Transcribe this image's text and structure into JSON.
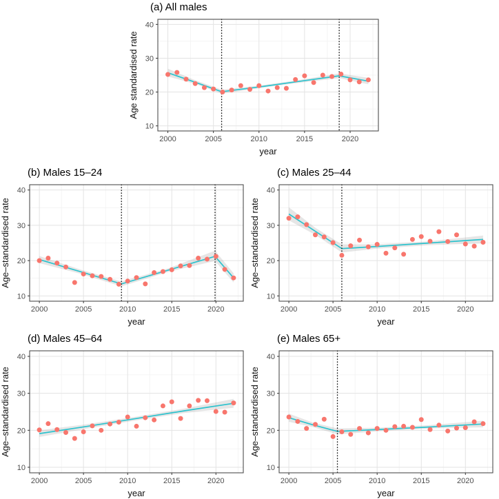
{
  "figure": {
    "description": "Five-panel faceted figure of age-standardised rates for males by age group, 2000-2022, with scatter points, piecewise linear trend with confidence band, and dotted breakpoint lines"
  },
  "colors": {
    "point": "#f8766d",
    "trend_line": "#2cc2cd",
    "ci_band": "#9a9a9a",
    "grid_major": "#e3e3e3",
    "grid_minor": "#f2f2f2",
    "panel_border": "#4d4d4d",
    "vline": "#1a1a1a",
    "tick_text": "#4d4d4d",
    "axis_title_text": "#111111",
    "title_text": "#000000",
    "background": "#ffffff"
  },
  "chart_data": [
    {
      "type": "scatter",
      "panel": "a",
      "title": "(a) All males",
      "xlabel": "year",
      "ylabel": "Age standardised rate",
      "x_ticks": [
        2000,
        2005,
        2010,
        2015,
        2020
      ],
      "y_ticks": [
        10,
        20,
        30,
        40
      ],
      "xlim": [
        1998.9,
        2023.1
      ],
      "ylim": [
        8.5,
        41.5
      ],
      "years": [
        2000,
        2001,
        2002,
        2003,
        2004,
        2005,
        2006,
        2007,
        2008,
        2009,
        2010,
        2011,
        2012,
        2013,
        2014,
        2015,
        2016,
        2017,
        2018,
        2019,
        2020,
        2021,
        2022
      ],
      "values": [
        25.2,
        25.8,
        23.8,
        22.5,
        21.3,
        20.9,
        20.0,
        20.6,
        21.9,
        20.8,
        21.9,
        20.3,
        21.3,
        21.1,
        23.7,
        24.8,
        22.8,
        25.0,
        24.6,
        25.3,
        23.6,
        23.0,
        23.6
      ],
      "breakpoint_vlines": [
        2005.9,
        2018.8
      ],
      "trend": [
        {
          "x": 2000,
          "y": 25.7,
          "lo": 24.6,
          "hi": 26.9
        },
        {
          "x": 2003,
          "y": 22.9,
          "lo": 22.4,
          "hi": 23.5
        },
        {
          "x": 2005.9,
          "y": 20.1,
          "lo": 19.5,
          "hi": 20.7
        },
        {
          "x": 2010,
          "y": 21.5,
          "lo": 21.1,
          "hi": 21.9
        },
        {
          "x": 2014,
          "y": 23.0,
          "lo": 22.6,
          "hi": 23.4
        },
        {
          "x": 2018.8,
          "y": 24.8,
          "lo": 24.1,
          "hi": 25.5
        },
        {
          "x": 2022,
          "y": 23.2,
          "lo": 22.3,
          "hi": 24.2
        }
      ]
    },
    {
      "type": "scatter",
      "panel": "b",
      "title": "(b) Males 15–24",
      "xlabel": "year",
      "ylabel": "Age–standardised rate",
      "x_ticks": [
        2000,
        2005,
        2010,
        2015,
        2020
      ],
      "y_ticks": [
        10,
        20,
        30,
        40
      ],
      "xlim": [
        1998.9,
        2023.1
      ],
      "ylim": [
        8.5,
        41.5
      ],
      "years": [
        2000,
        2001,
        2002,
        2003,
        2004,
        2005,
        2006,
        2007,
        2008,
        2009,
        2010,
        2011,
        2012,
        2013,
        2014,
        2015,
        2016,
        2017,
        2018,
        2019,
        2020,
        2021,
        2022
      ],
      "values": [
        20.0,
        20.7,
        19.3,
        18.2,
        13.8,
        16.2,
        15.7,
        15.5,
        14.7,
        13.3,
        14.2,
        15.2,
        13.4,
        16.6,
        16.9,
        17.4,
        18.5,
        18.6,
        20.7,
        20.4,
        21.2,
        17.5,
        15.1
      ],
      "breakpoint_vlines": [
        2009.3,
        2019.9
      ],
      "trend": [
        {
          "x": 2000,
          "y": 20.3,
          "lo": 19.3,
          "hi": 21.3
        },
        {
          "x": 2004.6,
          "y": 16.9,
          "lo": 16.3,
          "hi": 17.5
        },
        {
          "x": 2009.3,
          "y": 13.4,
          "lo": 12.7,
          "hi": 14.1
        },
        {
          "x": 2014.6,
          "y": 17.3,
          "lo": 16.8,
          "hi": 17.8
        },
        {
          "x": 2019.9,
          "y": 21.2,
          "lo": 19.9,
          "hi": 22.8
        },
        {
          "x": 2022,
          "y": 15.1,
          "lo": 13.8,
          "hi": 16.4
        }
      ]
    },
    {
      "type": "scatter",
      "panel": "c",
      "title": "(c) Males 25–44",
      "xlabel": "year",
      "ylabel": "Age–standardised rate",
      "x_ticks": [
        2000,
        2005,
        2010,
        2015,
        2020
      ],
      "y_ticks": [
        10,
        20,
        30,
        40
      ],
      "xlim": [
        1998.9,
        2023.1
      ],
      "ylim": [
        8.5,
        41.5
      ],
      "years": [
        2000,
        2001,
        2002,
        2003,
        2004,
        2005,
        2006,
        2007,
        2008,
        2009,
        2010,
        2011,
        2012,
        2013,
        2014,
        2015,
        2016,
        2017,
        2018,
        2019,
        2020,
        2021,
        2022
      ],
      "values": [
        32.0,
        32.4,
        30.2,
        27.3,
        26.7,
        25.1,
        21.5,
        24.2,
        25.8,
        23.9,
        24.6,
        22.1,
        23.6,
        21.8,
        26.0,
        26.8,
        25.5,
        28.2,
        25.4,
        27.3,
        24.7,
        24.1,
        25.2
      ],
      "breakpoint_vlines": [
        2006.0
      ],
      "trend": [
        {
          "x": 2000,
          "y": 33.2,
          "lo": 31.4,
          "hi": 35.1
        },
        {
          "x": 2003,
          "y": 28.3,
          "lo": 27.3,
          "hi": 29.3
        },
        {
          "x": 2006,
          "y": 23.4,
          "lo": 22.3,
          "hi": 24.6
        },
        {
          "x": 2010,
          "y": 24.0,
          "lo": 23.4,
          "hi": 24.6
        },
        {
          "x": 2016,
          "y": 25.0,
          "lo": 24.4,
          "hi": 25.5
        },
        {
          "x": 2022,
          "y": 26.0,
          "lo": 24.9,
          "hi": 27.1
        }
      ]
    },
    {
      "type": "scatter",
      "panel": "d",
      "title": "(d) Males 45–64",
      "xlabel": "year",
      "ylabel": "Age–standardised rate",
      "x_ticks": [
        2000,
        2005,
        2010,
        2015,
        2020
      ],
      "y_ticks": [
        10,
        20,
        30,
        40
      ],
      "xlim": [
        1998.9,
        2023.1
      ],
      "ylim": [
        8.5,
        41.5
      ],
      "years": [
        2000,
        2001,
        2002,
        2003,
        2004,
        2005,
        2006,
        2007,
        2008,
        2009,
        2010,
        2011,
        2012,
        2013,
        2014,
        2015,
        2016,
        2017,
        2018,
        2019,
        2020,
        2021,
        2022
      ],
      "values": [
        20.1,
        21.8,
        20.2,
        19.4,
        17.8,
        19.6,
        21.2,
        20.0,
        21.7,
        22.2,
        23.6,
        21.1,
        23.4,
        22.8,
        26.6,
        27.7,
        23.2,
        26.6,
        28.1,
        28.0,
        25.1,
        24.9,
        27.4
      ],
      "breakpoint_vlines": [],
      "trend": [
        {
          "x": 2000,
          "y": 19.1,
          "lo": 18.2,
          "hi": 20.0
        },
        {
          "x": 2005.5,
          "y": 21.1,
          "lo": 20.5,
          "hi": 21.7
        },
        {
          "x": 2011,
          "y": 23.2,
          "lo": 22.7,
          "hi": 23.7
        },
        {
          "x": 2016.5,
          "y": 25.3,
          "lo": 24.7,
          "hi": 25.9
        },
        {
          "x": 2022,
          "y": 27.3,
          "lo": 26.1,
          "hi": 28.5
        }
      ]
    },
    {
      "type": "scatter",
      "panel": "e",
      "title": "(e) Males 65+",
      "xlabel": "year",
      "ylabel": "Age–standardised rate",
      "x_ticks": [
        2000,
        2005,
        2010,
        2015,
        2020
      ],
      "y_ticks": [
        10,
        20,
        30,
        40
      ],
      "xlim": [
        1998.9,
        2023.1
      ],
      "ylim": [
        8.5,
        41.5
      ],
      "years": [
        2000,
        2001,
        2002,
        2003,
        2004,
        2005,
        2006,
        2007,
        2008,
        2009,
        2010,
        2011,
        2012,
        2013,
        2014,
        2015,
        2016,
        2017,
        2018,
        2019,
        2020,
        2021,
        2022
      ],
      "values": [
        23.6,
        22.4,
        20.5,
        21.6,
        23.0,
        18.3,
        19.6,
        18.9,
        20.5,
        19.3,
        20.5,
        20.0,
        21.0,
        21.1,
        20.8,
        22.9,
        20.2,
        21.4,
        19.8,
        20.6,
        20.7,
        22.3,
        21.8
      ],
      "breakpoint_vlines": [
        2005.5
      ],
      "trend": [
        {
          "x": 2000,
          "y": 23.4,
          "lo": 22.3,
          "hi": 24.5
        },
        {
          "x": 2002.7,
          "y": 21.5,
          "lo": 20.9,
          "hi": 22.1
        },
        {
          "x": 2005.5,
          "y": 19.7,
          "lo": 18.9,
          "hi": 20.5
        },
        {
          "x": 2010,
          "y": 20.2,
          "lo": 19.7,
          "hi": 20.7
        },
        {
          "x": 2016,
          "y": 20.9,
          "lo": 20.5,
          "hi": 21.4
        },
        {
          "x": 2022,
          "y": 21.7,
          "lo": 20.8,
          "hi": 22.6
        }
      ]
    }
  ]
}
